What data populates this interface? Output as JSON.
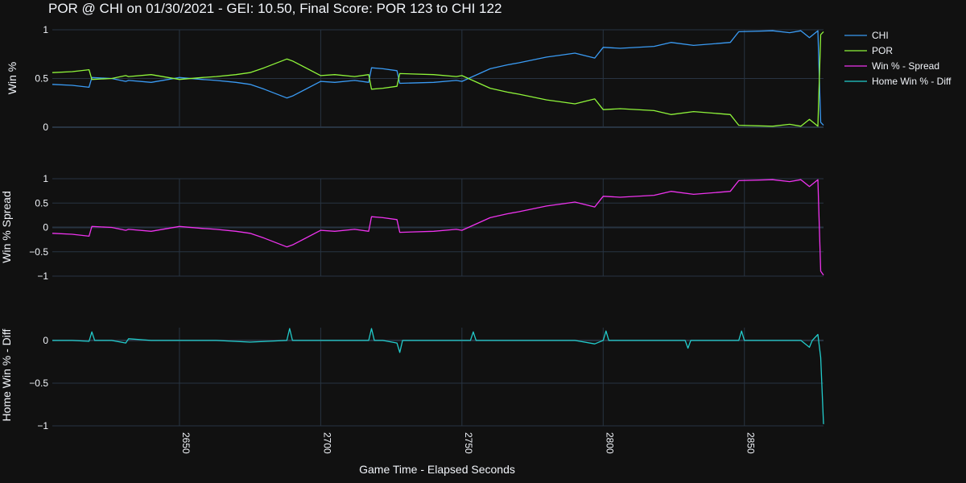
{
  "title": "POR @ CHI on 01/30/2021 - GEI: 10.50, Final Score: POR 123 to CHI 122",
  "colors": {
    "background": "#111111",
    "grid": "#283442",
    "text": "#f2f5fa",
    "CHI": "#3a9bf4",
    "POR": "#8ff53a",
    "spread": "#ee33ee",
    "diff": "#22cccc"
  },
  "legend": {
    "chi": "CHI",
    "por": "POR",
    "spread": "Win % - Spread",
    "diff": "Home Win % - Diff"
  },
  "x_axis": {
    "title": "Game Time - Elapsed Seconds",
    "range": [
      2605,
      2878
    ],
    "ticks": [
      2650,
      2700,
      2750,
      2800,
      2850
    ],
    "tick_labels": [
      "2650",
      "2700",
      "2750",
      "2800",
      "2850"
    ]
  },
  "chart_data": [
    {
      "type": "line",
      "ylabel": "Win %",
      "ylim": [
        0,
        1
      ],
      "y_ticks": [
        0,
        0.5,
        1
      ],
      "y_tick_labels": [
        "0",
        "0.5",
        "1"
      ],
      "x": [
        2605,
        2612,
        2618,
        2619,
        2626,
        2631,
        2632,
        2640,
        2650,
        2658,
        2663,
        2670,
        2675,
        2680,
        2688,
        2690,
        2700,
        2705,
        2712,
        2717,
        2718,
        2722,
        2727,
        2728,
        2740,
        2748,
        2750,
        2760,
        2766,
        2770,
        2780,
        2785,
        2790,
        2797,
        2800,
        2806,
        2818,
        2824,
        2832,
        2845,
        2848,
        2860,
        2866,
        2870,
        2873,
        2876,
        2877,
        2878
      ],
      "series": [
        {
          "name": "CHI",
          "values": [
            0.44,
            0.43,
            0.41,
            0.51,
            0.5,
            0.47,
            0.48,
            0.46,
            0.51,
            0.49,
            0.48,
            0.46,
            0.44,
            0.39,
            0.3,
            0.32,
            0.47,
            0.46,
            0.48,
            0.46,
            0.61,
            0.6,
            0.58,
            0.45,
            0.46,
            0.48,
            0.47,
            0.6,
            0.64,
            0.66,
            0.72,
            0.74,
            0.76,
            0.71,
            0.82,
            0.81,
            0.83,
            0.87,
            0.84,
            0.87,
            0.98,
            0.99,
            0.97,
            0.99,
            0.92,
            0.99,
            0.05,
            0.02
          ]
        },
        {
          "name": "POR",
          "values": [
            0.56,
            0.57,
            0.59,
            0.49,
            0.5,
            0.53,
            0.52,
            0.54,
            0.49,
            0.51,
            0.52,
            0.54,
            0.56,
            0.61,
            0.7,
            0.68,
            0.53,
            0.54,
            0.52,
            0.54,
            0.39,
            0.4,
            0.42,
            0.55,
            0.54,
            0.52,
            0.53,
            0.4,
            0.36,
            0.34,
            0.28,
            0.26,
            0.24,
            0.29,
            0.18,
            0.19,
            0.17,
            0.13,
            0.16,
            0.13,
            0.02,
            0.01,
            0.03,
            0.01,
            0.08,
            0.01,
            0.95,
            0.98
          ]
        }
      ]
    },
    {
      "type": "line",
      "ylabel": "Win % Spread",
      "ylim": [
        -1,
        1
      ],
      "y_ticks": [
        -1,
        -0.5,
        0,
        0.5,
        1
      ],
      "y_tick_labels": [
        "−1",
        "−0.5",
        "0",
        "0.5",
        "1"
      ],
      "x": [
        2605,
        2612,
        2618,
        2619,
        2626,
        2631,
        2632,
        2640,
        2650,
        2658,
        2663,
        2670,
        2675,
        2680,
        2688,
        2690,
        2700,
        2705,
        2712,
        2717,
        2718,
        2722,
        2727,
        2728,
        2740,
        2748,
        2750,
        2760,
        2766,
        2770,
        2780,
        2785,
        2790,
        2797,
        2800,
        2806,
        2818,
        2824,
        2832,
        2845,
        2848,
        2860,
        2866,
        2870,
        2873,
        2876,
        2877,
        2878
      ],
      "series": [
        {
          "name": "Win % - Spread",
          "values": [
            -0.12,
            -0.14,
            -0.18,
            0.02,
            0.0,
            -0.06,
            -0.04,
            -0.08,
            0.02,
            -0.02,
            -0.04,
            -0.08,
            -0.12,
            -0.22,
            -0.4,
            -0.36,
            -0.06,
            -0.08,
            -0.04,
            -0.08,
            0.22,
            0.2,
            0.16,
            -0.1,
            -0.08,
            -0.04,
            -0.06,
            0.2,
            0.28,
            0.32,
            0.44,
            0.48,
            0.52,
            0.42,
            0.64,
            0.62,
            0.66,
            0.74,
            0.68,
            0.74,
            0.96,
            0.98,
            0.94,
            0.98,
            0.84,
            0.98,
            -0.9,
            -0.98
          ]
        }
      ]
    },
    {
      "type": "line",
      "ylabel": "Home Win % - Diff",
      "ylim": [
        -1,
        0.15
      ],
      "y_ticks": [
        -1,
        -0.5,
        0
      ],
      "y_tick_labels": [
        "−1",
        "−0.5",
        "0"
      ],
      "x": [
        2605,
        2612,
        2618,
        2619,
        2620,
        2626,
        2631,
        2632,
        2640,
        2650,
        2663,
        2675,
        2688,
        2689,
        2690,
        2700,
        2712,
        2717,
        2718,
        2719,
        2722,
        2727,
        2728,
        2729,
        2740,
        2750,
        2753,
        2754,
        2755,
        2766,
        2780,
        2790,
        2797,
        2800,
        2801,
        2802,
        2818,
        2829,
        2830,
        2831,
        2840,
        2848,
        2849,
        2850,
        2866,
        2870,
        2873,
        2874,
        2876,
        2877,
        2878
      ],
      "series": [
        {
          "name": "Home Win % - Diff",
          "values": [
            0.0,
            0.0,
            -0.01,
            0.1,
            0.0,
            0.0,
            -0.03,
            0.02,
            0.0,
            0.0,
            0.0,
            -0.02,
            0.0,
            0.14,
            0.0,
            0.0,
            0.0,
            0.0,
            0.14,
            0.0,
            0.0,
            -0.03,
            -0.14,
            0.0,
            0.0,
            0.0,
            0.0,
            0.1,
            0.0,
            0.0,
            0.0,
            0.0,
            -0.04,
            0.0,
            0.11,
            0.0,
            0.0,
            0.0,
            -0.09,
            0.0,
            0.0,
            0.0,
            0.11,
            0.0,
            0.0,
            0.0,
            -0.08,
            0.0,
            0.07,
            -0.2,
            -0.98
          ]
        }
      ]
    }
  ]
}
